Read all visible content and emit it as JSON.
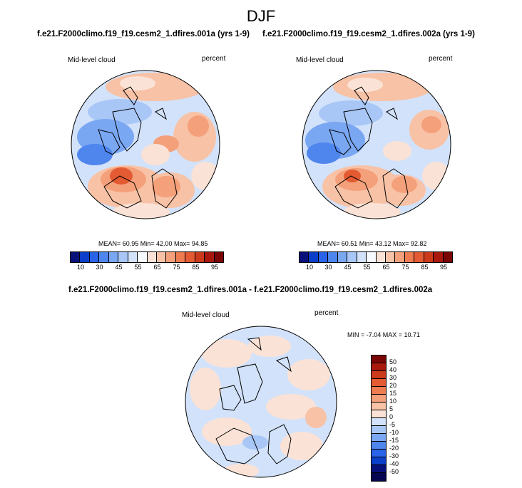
{
  "figure": {
    "season": "DJF"
  },
  "top_left": {
    "case_title": "f.e21.F2000climo.f19_f19.cesm2_1.dfires.001a (yrs 1-9)",
    "left_label": "Mid-level cloud",
    "right_label": "percent",
    "stats": "MEAN= 60.95  Min= 42.00  Max= 94.85"
  },
  "top_right": {
    "case_title": "f.e21.F2000climo.f19_f19.cesm2_1.dfires.002a (yrs 1-9)",
    "left_label": "Mid-level cloud",
    "right_label": "percent",
    "stats": "MEAN= 60.51  Min= 43.12  Max= 92.82"
  },
  "difference": {
    "case_title": "f.e21.F2000climo.f19_f19.cesm2_1.dfires.001a - f.e21.F2000climo.f19_f19.cesm2_1.dfires.002a",
    "left_label": "Mid-level cloud",
    "right_label": "percent",
    "minmax": "MIN = -7.04 MAX = 10.71"
  },
  "colorbar_abs": {
    "tick_labels": [
      "10",
      "30",
      "45",
      "55",
      "65",
      "75",
      "85",
      "95"
    ],
    "colors": [
      "#08107a",
      "#0b3fc9",
      "#2a63e8",
      "#4f86ee",
      "#7aa7f2",
      "#a8c6f6",
      "#d2e2fa",
      "#f6f9fd",
      "#fbe2d6",
      "#f8c2a6",
      "#f4a07a",
      "#ef7b51",
      "#e45a32",
      "#cc3a1c",
      "#a8180d",
      "#7a0505"
    ]
  },
  "colorbar_diff": {
    "tick_labels": [
      "50",
      "40",
      "30",
      "20",
      "15",
      "10",
      "5",
      "0",
      "-5",
      "-10",
      "-15",
      "-20",
      "-30",
      "-40",
      "-50"
    ],
    "colors": [
      "#7a0505",
      "#a8180d",
      "#cc3a1c",
      "#e45a32",
      "#ef7b51",
      "#f4a07a",
      "#f8c2a6",
      "#fbe2d6",
      "#d2e2fa",
      "#a8c6f6",
      "#7aa7f2",
      "#4f86ee",
      "#2a63e8",
      "#0b3fc9",
      "#08107a",
      "#05064f"
    ]
  }
}
